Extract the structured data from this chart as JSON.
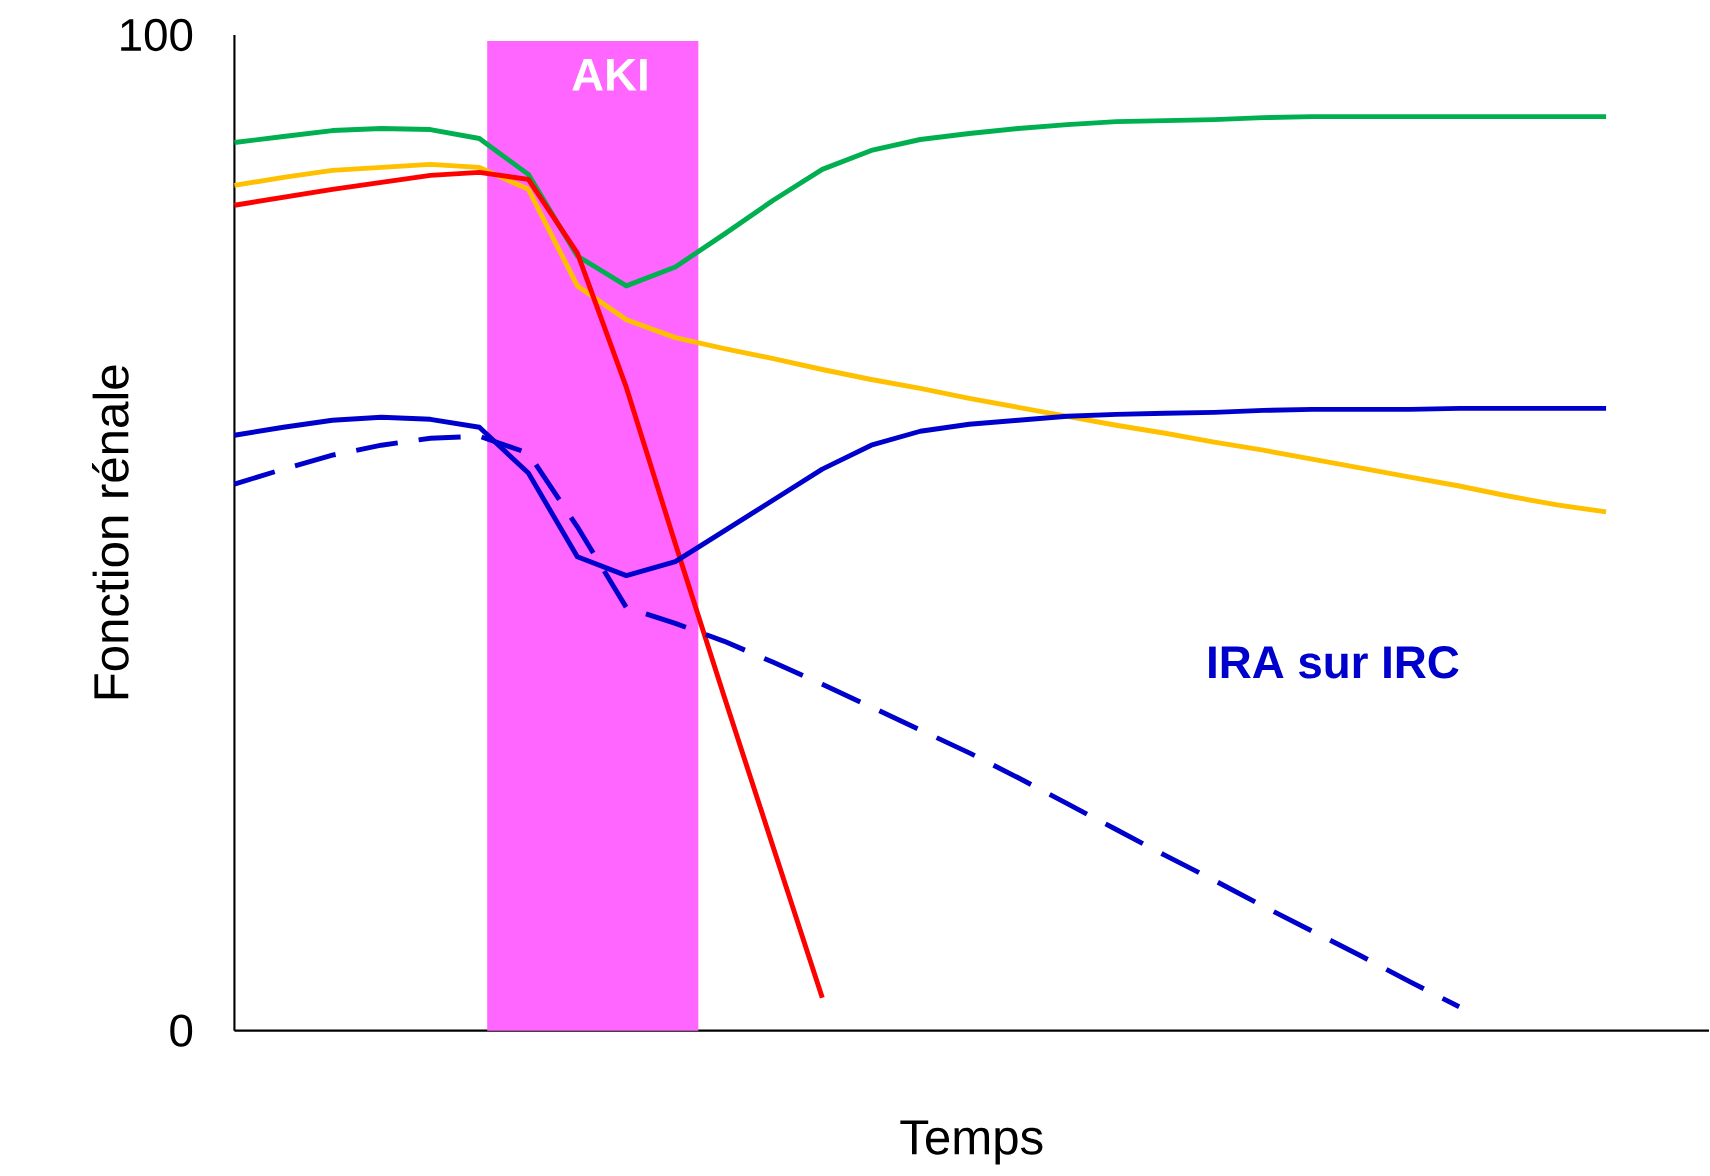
{
  "chart_data": {
    "type": "line",
    "xlabel": "Temps",
    "ylabel": "Fonction rénale",
    "ylim": [
      0,
      100
    ],
    "yticks": [
      0,
      100
    ],
    "tick_labels": "y",
    "grid": false,
    "marker": "none",
    "categories": [
      null,
      null,
      null,
      null,
      null,
      null,
      null,
      null,
      null,
      null,
      null,
      null,
      null,
      null,
      null,
      null,
      null,
      null,
      null,
      null,
      null,
      null,
      null,
      null,
      null,
      null,
      null,
      null,
      null
    ],
    "annotations": [
      "AKI",
      "IRA sur IRC"
    ],
    "series": [
      {
        "color": "#00b050",
        "line_style": "solid",
        "values": [
          89.2,
          89.8,
          90.4,
          90.6,
          90.5,
          89.6,
          86.0,
          77.8,
          74.8,
          76.7,
          80.0,
          83.4,
          86.5,
          88.4,
          89.5,
          90.1,
          90.6,
          91.0,
          91.3,
          91.4,
          91.5,
          91.7,
          91.8,
          91.8,
          91.8,
          91.8,
          91.8,
          91.8,
          91.8
        ]
      },
      {
        "color": "#ffc000",
        "line_style": "solid",
        "values": [
          84.9,
          85.7,
          86.4,
          86.7,
          87.0,
          86.7,
          84.5,
          74.8,
          71.4,
          69.6,
          68.5,
          67.5,
          66.4,
          65.4,
          64.5,
          63.5,
          62.6,
          61.7,
          60.8,
          60.0,
          59.1,
          58.3,
          57.4,
          56.5,
          55.6,
          54.7,
          53.7,
          52.8,
          52.1
        ]
      },
      {
        "color": "#ff0000",
        "line_style": "solid",
        "values": [
          82.9,
          83.7,
          84.5,
          85.2,
          85.9,
          86.2,
          85.5,
          78.1,
          64.6,
          48.9,
          33.5,
          18.4,
          3.3,
          null,
          null,
          null,
          null,
          null,
          null,
          null,
          null,
          null,
          null,
          null,
          null,
          null,
          null,
          null,
          null
        ]
      },
      {
        "color": "#0000cc",
        "line_style": "solid",
        "values": [
          59.8,
          60.6,
          61.3,
          61.6,
          61.4,
          60.6,
          56.0,
          47.6,
          45.7,
          47.1,
          50.2,
          53.3,
          56.4,
          58.8,
          60.2,
          60.9,
          61.3,
          61.7,
          61.9,
          62.0,
          62.1,
          62.3,
          62.4,
          62.4,
          62.4,
          62.5,
          62.5,
          62.5,
          62.5
        ]
      },
      {
        "color": "#0000cc",
        "line_style": "dashed",
        "values": [
          54.9,
          56.4,
          57.8,
          58.8,
          59.5,
          59.7,
          58.0,
          50.6,
          42.5,
          40.9,
          39.1,
          37.0,
          34.8,
          32.5,
          30.2,
          27.9,
          25.4,
          22.8,
          20.2,
          17.6,
          15.1,
          12.5,
          10.0,
          7.5,
          4.9,
          2.4,
          null,
          null,
          null
        ]
      }
    ]
  }
}
